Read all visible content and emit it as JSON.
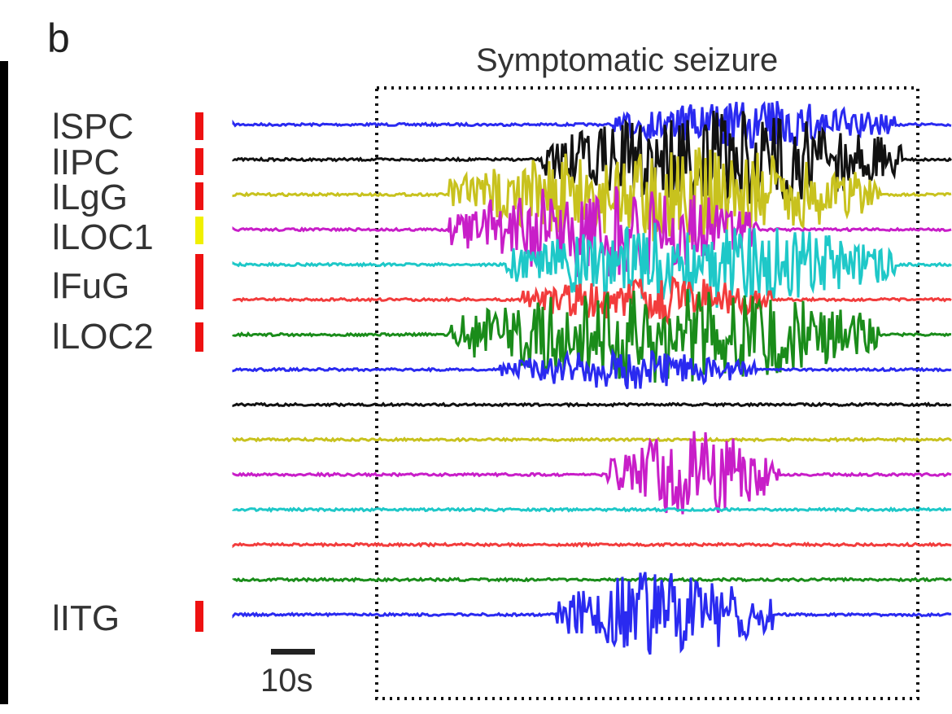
{
  "panel_letter": "b",
  "seizure_title": "Symptomatic seizure",
  "scale_bar_label": "10s",
  "channel_labels": [
    "lSPC",
    "lIPC",
    "lLgG",
    "lLOC1",
    "lFuG",
    "lLOC2",
    "lITG"
  ],
  "colors": {
    "blue": "#2a2af0",
    "black": "#111111",
    "yellow": "#c8c21e",
    "magenta": "#c81ec8",
    "cyan": "#1ec8c8",
    "red": "#f23c3c",
    "green": "#1a8c1a",
    "marker_red": "#ee1111",
    "marker_yellow": "#f0f000"
  },
  "traces": [
    {
      "color": "blue",
      "onset": 0.53,
      "offset": 0.92,
      "amp": 0.5,
      "label": "lSPC",
      "marker": "marker_red"
    },
    {
      "color": "black",
      "onset": 0.43,
      "offset": 0.93,
      "amp": 1.0,
      "label": "lIPC",
      "marker": "marker_red"
    },
    {
      "color": "yellow",
      "onset": 0.3,
      "offset": 0.9,
      "amp": 1.0,
      "label": "lLgG",
      "marker": "marker_red"
    },
    {
      "color": "magenta",
      "onset": 0.3,
      "offset": 0.73,
      "amp": 1.0,
      "label": "lLOC1",
      "marker": "marker_yellow"
    },
    {
      "color": "cyan",
      "onset": 0.38,
      "offset": 0.92,
      "amp": 0.9,
      "label": "lFuG",
      "marker": "marker_red"
    },
    {
      "color": "red",
      "onset": 0.4,
      "offset": 0.75,
      "amp": 0.5,
      "label": "",
      "marker": "marker_red"
    },
    {
      "color": "green",
      "onset": 0.3,
      "offset": 0.9,
      "amp": 1.0,
      "label": "lLOC2",
      "marker": "marker_red"
    },
    {
      "color": "blue",
      "onset": 0.37,
      "offset": 0.73,
      "amp": 0.4,
      "label": "",
      "marker": ""
    },
    {
      "color": "black",
      "onset": -1,
      "offset": -1,
      "amp": 0,
      "label": "",
      "marker": ""
    },
    {
      "color": "yellow",
      "onset": -1,
      "offset": -1,
      "amp": 0,
      "label": "",
      "marker": ""
    },
    {
      "color": "magenta",
      "onset": 0.52,
      "offset": 0.76,
      "amp": 0.9,
      "label": "",
      "marker": ""
    },
    {
      "color": "cyan",
      "onset": -1,
      "offset": -1,
      "amp": 0,
      "label": "",
      "marker": ""
    },
    {
      "color": "red",
      "onset": -1,
      "offset": -1,
      "amp": 0,
      "label": "",
      "marker": ""
    },
    {
      "color": "green",
      "onset": -1,
      "offset": -1,
      "amp": 0,
      "label": "",
      "marker": ""
    },
    {
      "color": "blue",
      "onset": 0.45,
      "offset": 0.75,
      "amp": 0.9,
      "label": "lITG",
      "marker": "marker_red"
    }
  ]
}
